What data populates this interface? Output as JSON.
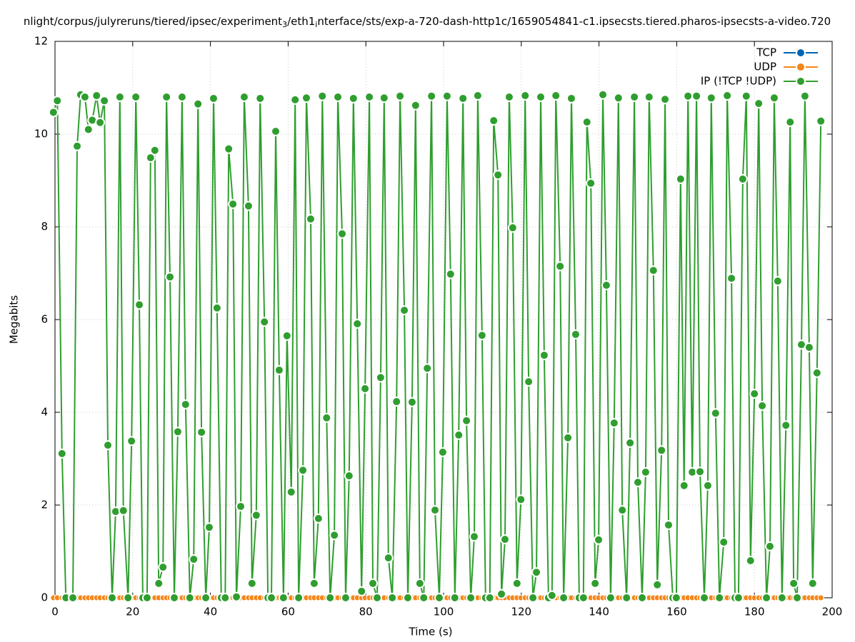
{
  "chart_data": {
    "type": "line",
    "title": "nlight/corpus/julyreruns/tiered/ipsec/experiment_3/eth1_interface/sts/exp-a-720-dash-http1c/1659054841-c1.ipsecsts.tiered.pharos-ipsecsts-a-video.720",
    "x_label": "Time (s)",
    "y_label": "Megabits",
    "xlim": [
      0,
      200
    ],
    "ylim": [
      0,
      12
    ],
    "xticks": [
      0,
      20,
      40,
      60,
      80,
      100,
      120,
      140,
      160,
      180,
      200
    ],
    "yticks": [
      0,
      2,
      4,
      6,
      8,
      10,
      12
    ],
    "grid": true,
    "legend": "upper right",
    "x": [
      -0.4,
      0.6,
      1.8,
      2.8,
      4.6,
      5.7,
      6.6,
      7.7,
      8.6,
      9.6,
      10.7,
      11.6,
      12.7,
      13.6,
      14.7,
      15.6,
      16.7,
      17.6,
      18.8,
      19.7,
      20.8,
      21.7,
      22.6,
      23.7,
      24.6,
      25.7,
      26.7,
      27.8,
      28.7,
      29.6,
      30.7,
      31.6,
      32.7,
      33.6,
      34.7,
      35.7,
      36.8,
      37.7,
      38.8,
      39.7,
      40.8,
      41.7,
      42.8,
      43.8,
      44.7,
      45.8,
      46.7,
      47.8,
      48.7,
      49.8,
      50.7,
      51.8,
      52.8,
      53.9,
      54.8,
      55.7,
      56.8,
      57.7,
      58.8,
      59.7,
      60.8,
      61.8,
      62.7,
      63.8,
      64.7,
      65.8,
      66.7,
      67.8,
      68.8,
      69.9,
      70.8,
      71.9,
      72.8,
      73.9,
      74.8,
      75.7,
      76.8,
      77.8,
      78.9,
      79.8,
      80.9,
      81.8,
      82.9,
      83.8,
      84.7,
      85.8,
      86.8,
      87.9,
      88.8,
      89.9,
      90.8,
      91.9,
      92.8,
      93.9,
      94.9,
      95.8,
      96.9,
      97.8,
      98.9,
      99.8,
      100.9,
      101.8,
      102.9,
      103.9,
      105.0,
      105.9,
      107.0,
      107.9,
      108.8,
      109.9,
      110.8,
      111.9,
      112.9,
      114.0,
      114.9,
      115.8,
      116.9,
      117.8,
      118.9,
      119.9,
      121.0,
      121.9,
      123.0,
      123.9,
      125.0,
      125.9,
      127.0,
      127.9,
      128.9,
      130.0,
      130.9,
      132.0,
      132.9,
      134.0,
      134.9,
      136.0,
      136.9,
      137.9,
      139.0,
      139.9,
      141.0,
      141.9,
      143.0,
      143.9,
      145.0,
      146.0,
      147.1,
      148.0,
      149.1,
      150.0,
      151.1,
      152.0,
      152.9,
      154.0,
      155.0,
      156.1,
      157.0,
      157.9,
      159.0,
      159.9,
      161.0,
      161.9,
      162.9,
      164.0,
      165.1,
      166.0,
      167.1,
      168.0,
      168.9,
      170.0,
      171.0,
      172.1,
      173.0,
      174.1,
      175.0,
      175.9,
      177.0,
      177.9,
      179.0,
      180.0,
      181.1,
      182.0,
      183.1,
      184.0,
      185.1,
      186.0,
      187.1,
      188.1,
      189.2,
      190.1,
      191.0,
      192.1,
      193.0,
      194.1,
      195.0,
      196.1,
      197.1
    ],
    "series": [
      {
        "name": "TCP",
        "color": "#0066b3",
        "values": [
          0,
          0,
          0,
          0,
          0,
          0,
          0,
          0,
          0,
          0,
          0,
          0,
          0,
          0,
          0,
          0,
          0,
          0,
          0,
          0,
          0,
          0,
          0,
          0,
          0,
          0,
          0,
          0,
          0,
          0,
          0,
          0,
          0,
          0,
          0,
          0,
          0,
          0,
          0,
          0,
          0,
          0,
          0,
          0,
          0,
          0,
          0,
          0,
          0,
          0,
          0,
          0,
          0,
          0,
          0,
          0,
          0,
          0,
          0,
          0,
          0,
          0,
          0,
          0,
          0,
          0,
          0,
          0,
          0,
          0,
          0,
          0,
          0,
          0,
          0,
          0,
          0,
          0,
          0,
          0,
          0,
          0,
          0,
          0,
          0,
          0,
          0,
          0,
          0,
          0,
          0,
          0,
          0,
          0,
          0,
          0,
          0,
          0,
          0,
          0,
          0,
          0,
          0,
          0,
          0,
          0,
          0,
          0,
          0,
          0,
          0,
          0,
          0,
          0,
          0,
          0,
          0,
          0,
          0,
          0,
          0,
          0,
          0,
          0,
          0,
          0,
          0,
          0,
          0,
          0,
          0,
          0,
          0,
          0,
          0,
          0,
          0,
          0,
          0,
          0,
          0,
          0,
          0,
          0,
          0,
          0,
          0,
          0,
          0,
          0,
          0,
          0,
          0,
          0,
          0,
          0,
          0,
          0,
          0,
          0,
          0,
          0,
          0,
          0,
          0,
          0,
          0,
          0,
          0,
          0,
          0,
          0,
          0,
          0,
          0,
          0,
          0,
          0,
          0,
          0,
          0,
          0,
          0,
          0,
          0,
          0,
          0,
          0,
          0,
          0,
          0,
          0,
          0,
          0,
          0,
          0,
          0
        ]
      },
      {
        "name": "UDP",
        "color": "#f58518",
        "values": [
          0,
          0,
          0,
          0,
          0,
          0,
          0,
          0,
          0,
          0,
          0,
          0,
          0,
          0,
          0,
          0,
          0,
          0,
          0,
          0,
          0,
          0,
          0,
          0,
          0,
          0,
          0,
          0,
          0,
          0,
          0,
          0,
          0,
          0,
          0,
          0,
          0,
          0,
          0,
          0,
          0,
          0,
          0,
          0,
          0,
          0,
          0,
          0,
          0,
          0,
          0,
          0,
          0,
          0,
          0,
          0,
          0,
          0,
          0,
          0,
          0,
          0,
          0,
          0,
          0,
          0,
          0,
          0,
          0,
          0,
          0,
          0,
          0,
          0,
          0,
          0,
          0,
          0,
          0,
          0,
          0,
          0,
          0,
          0,
          0,
          0,
          0,
          0,
          0,
          0,
          0,
          0,
          0,
          0,
          0,
          0,
          0,
          0,
          0,
          0,
          0,
          0,
          0,
          0,
          0,
          0,
          0,
          0,
          0,
          0,
          0,
          0,
          0,
          0,
          0,
          0,
          0,
          0,
          0,
          0,
          0,
          0,
          0,
          0,
          0,
          0,
          0,
          0,
          0,
          0,
          0,
          0,
          0,
          0,
          0,
          0,
          0,
          0,
          0,
          0,
          0,
          0,
          0,
          0,
          0,
          0,
          0,
          0,
          0,
          0,
          0,
          0,
          0,
          0,
          0,
          0,
          0,
          0,
          0,
          0,
          0,
          0,
          0,
          0,
          0,
          0,
          0,
          0,
          0,
          0,
          0,
          0,
          0,
          0,
          0,
          0,
          0,
          0,
          0,
          0,
          0,
          0,
          0,
          0,
          0,
          0,
          0,
          0,
          0,
          0,
          0,
          0,
          0,
          0,
          0,
          0,
          0
        ]
      },
      {
        "name": "IP (!TCP  !UDP)",
        "color": "#2f9e2f",
        "values": [
          10.47,
          10.72,
          3.11,
          0,
          0,
          9.74,
          10.85,
          10.8,
          10.1,
          10.3,
          10.83,
          10.25,
          10.72,
          3.29,
          0,
          1.86,
          10.8,
          1.88,
          0,
          3.38,
          10.8,
          6.32,
          0,
          0,
          9.49,
          9.65,
          0.31,
          0.66,
          10.8,
          6.92,
          0,
          3.58,
          10.8,
          4.17,
          0,
          0.83,
          10.65,
          3.57,
          0,
          1.52,
          10.77,
          6.25,
          0,
          0,
          9.68,
          8.49,
          0.02,
          1.97,
          10.8,
          8.45,
          0.31,
          1.78,
          10.77,
          5.95,
          0,
          0,
          10.06,
          4.91,
          0,
          5.65,
          2.28,
          10.74,
          0,
          2.75,
          10.78,
          8.17,
          0.31,
          1.71,
          10.82,
          3.88,
          0,
          1.35,
          10.8,
          7.85,
          0,
          2.63,
          10.77,
          5.91,
          0.14,
          4.51,
          10.8,
          0.31,
          0,
          4.75,
          10.78,
          0.86,
          0,
          4.23,
          10.82,
          6.2,
          0,
          4.22,
          10.62,
          0.31,
          0,
          4.95,
          10.82,
          1.89,
          0,
          3.14,
          10.82,
          6.98,
          0,
          3.51,
          10.77,
          3.82,
          0,
          1.32,
          10.83,
          5.66,
          0,
          0,
          10.29,
          9.12,
          0.08,
          1.26,
          10.8,
          7.98,
          0.31,
          2.12,
          10.83,
          4.66,
          0,
          0.55,
          10.8,
          5.23,
          0,
          0.05,
          10.83,
          7.15,
          0,
          3.45,
          10.77,
          5.68,
          0,
          0,
          10.26,
          8.94,
          0.31,
          1.25,
          10.85,
          6.74,
          0,
          3.77,
          10.78,
          1.89,
          0,
          3.34,
          10.8,
          2.49,
          0,
          2.71,
          10.8,
          7.06,
          0.28,
          3.18,
          10.75,
          1.57,
          0,
          0,
          9.03,
          2.42,
          10.82,
          2.71,
          10.82,
          2.72,
          0,
          2.42,
          10.78,
          3.98,
          0,
          1.2,
          10.83,
          6.89,
          0,
          0,
          9.03,
          10.82,
          0.8,
          4.4,
          10.66,
          4.14,
          0,
          1.11,
          10.78,
          6.83,
          0,
          3.72,
          10.26,
          0.31,
          0,
          5.46,
          10.82,
          5.4,
          0.31,
          4.85,
          10.28
        ]
      }
    ]
  }
}
